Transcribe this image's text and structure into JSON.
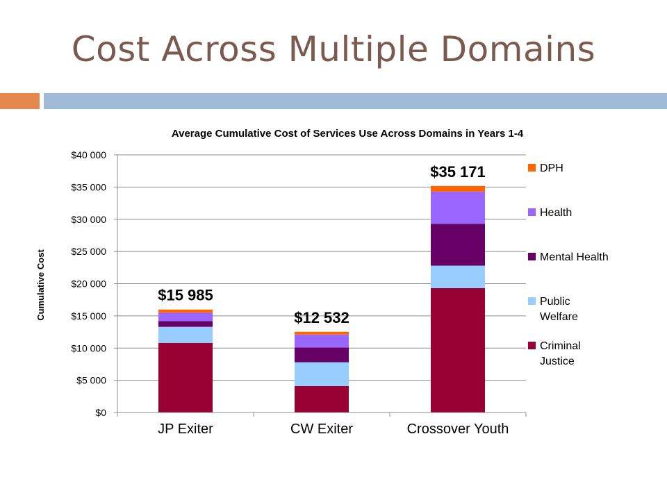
{
  "slide": {
    "title": "Cost Across Multiple Domains"
  },
  "colors": {
    "title": "#7a5a4f",
    "accent_orange": "#e5884e",
    "accent_blue": "#9fbad6"
  },
  "chart_data": {
    "type": "bar",
    "stacked": true,
    "title": "Average Cumulative Cost of Services Use Across Domains in Years 1-4",
    "xlabel": "",
    "ylabel": "Cumulative Cost",
    "ylim": [
      0,
      40000
    ],
    "yticks": [
      0,
      5000,
      10000,
      15000,
      20000,
      25000,
      30000,
      35000,
      40000
    ],
    "ytick_labels": [
      "$0",
      "$5 000",
      "$10 000",
      "$15 000",
      "$20 000",
      "$25 000",
      "$30 000",
      "$35 000",
      "$40 000"
    ],
    "grid": true,
    "legend_position": "right",
    "categories": [
      "JP Exiter",
      "CW Exiter",
      "Crossover Youth"
    ],
    "totals_labels": [
      "$15 985",
      "$12 532",
      "$35 171"
    ],
    "series": [
      {
        "name": "Criminal Justice",
        "color": "#990033",
        "values": [
          10800,
          4100,
          19300
        ]
      },
      {
        "name": "Public Welfare",
        "color": "#99ccff",
        "values": [
          2500,
          3700,
          3500
        ]
      },
      {
        "name": "Mental Health",
        "color": "#660066",
        "values": [
          900,
          2300,
          6500
        ]
      },
      {
        "name": "Health",
        "color": "#9966ff",
        "values": [
          1300,
          2000,
          5000
        ]
      },
      {
        "name": "DPH",
        "color": "#ff6600",
        "values": [
          485,
          432,
          871
        ]
      }
    ]
  }
}
